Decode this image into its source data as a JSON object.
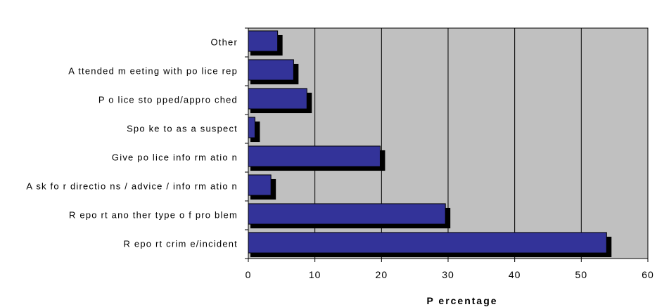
{
  "chart_data": {
    "type": "bar",
    "orientation": "horizontal",
    "categories": [
      "Other",
      "A ttended m eeting with po lice rep",
      "P o lice sto pped/appro ched",
      "Spo ke to as a suspect",
      "Give po lice info rm atio n",
      "A sk fo r directio ns / advice / info rm atio n",
      "R epo rt ano ther type o f pro blem",
      "R epo rt crim e/incident"
    ],
    "values": [
      4.4,
      6.8,
      8.8,
      1.0,
      19.8,
      3.4,
      29.6,
      53.8
    ],
    "xlabel": "P ercentage",
    "xlim": [
      0,
      60
    ],
    "xticks": [
      "0",
      "10",
      "20",
      "30",
      "40",
      "50",
      "60"
    ],
    "grid": "vertical",
    "legend": "none",
    "colors": {
      "bar": "#333399",
      "bar_shadow": "#000000",
      "plot_background": "#c0c0c0",
      "gridline": "#000000"
    }
  }
}
